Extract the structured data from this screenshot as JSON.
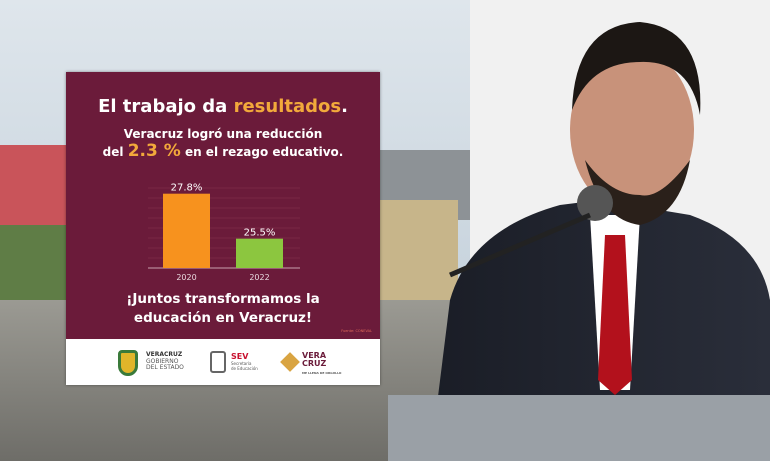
{
  "infographic": {
    "title_prefix": "El trabajo da ",
    "title_highlight": "resultados",
    "title_suffix": ".",
    "subtitle_line1": "Veracruz logró una reducción",
    "subtitle_pre": "del ",
    "subtitle_highlight": "2.3 %",
    "subtitle_post": " en el rezago educativo.",
    "closing_line1": "¡Juntos transformamos la",
    "closing_line2": "educación en Veracruz!",
    "source": "Fuente: CONEVAL",
    "logos": {
      "veracruz_gob": [
        "VERACRUZ",
        "GOBIERNO",
        "DEL ESTADO"
      ],
      "sev": [
        "SEV",
        "Secretaría",
        "de Educación"
      ],
      "veracruz_brand": [
        "VERA",
        "CRUZ",
        "ME LLENA DE ORGULLO"
      ]
    },
    "colors": {
      "background": "#6b1b3a",
      "highlight": "#f2a93b"
    }
  },
  "chart_data": {
    "type": "bar",
    "categories": [
      "2020",
      "2022"
    ],
    "values": [
      27.8,
      25.5
    ],
    "data_labels": [
      "27.8%",
      "25.5%"
    ],
    "colors": [
      "#f7921e",
      "#8cc63f"
    ],
    "ylim": [
      24,
      28.5
    ],
    "grid": true
  }
}
